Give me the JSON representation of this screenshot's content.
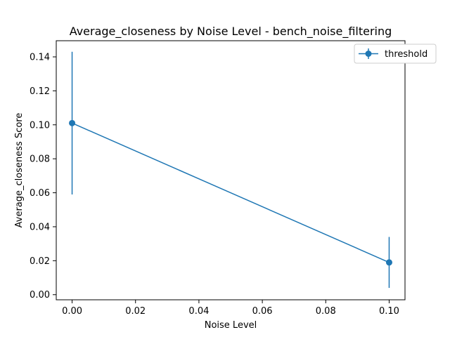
{
  "chart_data": {
    "type": "line",
    "title": "Average_closeness by Noise Level - bench_noise_filtering",
    "xlabel": "Noise Level",
    "ylabel": "Average_closeness Score",
    "xlim": [
      -0.005,
      0.105
    ],
    "ylim": [
      -0.003,
      0.1495
    ],
    "x_ticks": [
      0.0,
      0.02,
      0.04,
      0.06,
      0.08,
      0.1
    ],
    "x_tick_labels": [
      "0.00",
      "0.02",
      "0.04",
      "0.06",
      "0.08",
      "0.10"
    ],
    "y_ticks": [
      0.0,
      0.02,
      0.04,
      0.06,
      0.08,
      0.1,
      0.12,
      0.14
    ],
    "y_tick_labels": [
      "0.00",
      "0.02",
      "0.04",
      "0.06",
      "0.08",
      "0.10",
      "0.12",
      "0.14"
    ],
    "grid": false,
    "legend_position": "top-right",
    "series": [
      {
        "name": "threshold",
        "color": "#1f77b4",
        "x": [
          0.0,
          0.1
        ],
        "y": [
          0.101,
          0.019
        ],
        "yerr_low": [
          0.059,
          0.004
        ],
        "yerr_high": [
          0.143,
          0.034
        ]
      }
    ]
  }
}
